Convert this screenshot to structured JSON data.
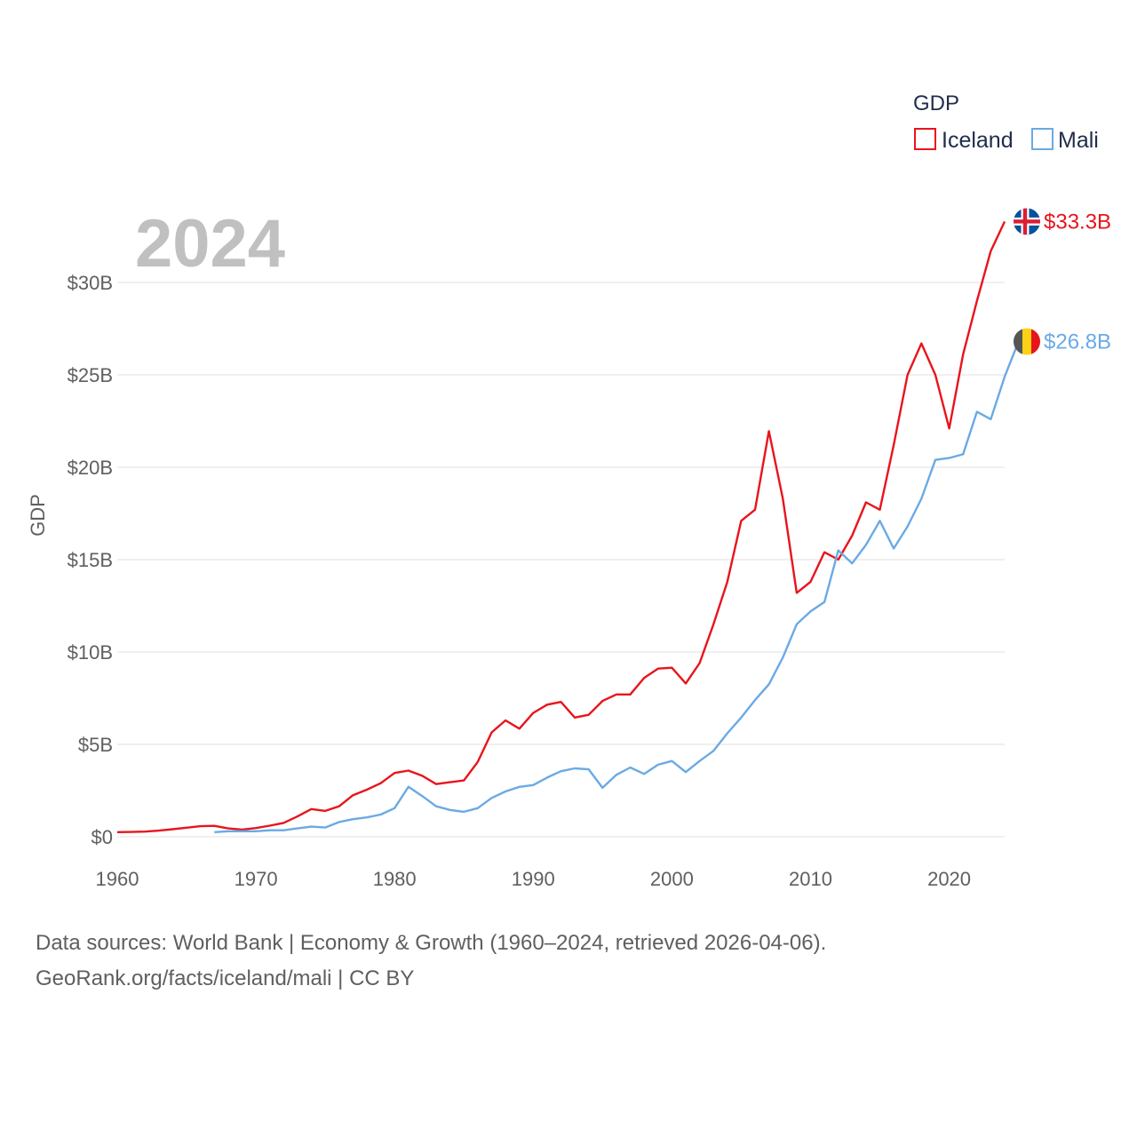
{
  "chart_data": {
    "type": "line",
    "year_overlay": "2024",
    "ylabel": "GDP",
    "xlabel": "",
    "xlim": [
      1960,
      2024
    ],
    "ylim": [
      0,
      33.3
    ],
    "y_ticks": [
      0,
      5,
      10,
      15,
      20,
      25,
      30
    ],
    "y_tick_labels": [
      "$0",
      "$5B",
      "$10B",
      "$15B",
      "$20B",
      "$25B",
      "$30B"
    ],
    "x_ticks": [
      1960,
      1970,
      1980,
      1990,
      2000,
      2010,
      2020
    ],
    "x_tick_labels": [
      "1960",
      "1970",
      "1980",
      "1990",
      "2000",
      "2010",
      "2020"
    ],
    "legend_title": "GDP",
    "legend_position": "top-right",
    "grid": true,
    "series": [
      {
        "name": "Iceland",
        "color": "#e8141c",
        "flag": "iceland-flag",
        "end_label": "$33.3B",
        "start_year": 1960,
        "values": [
          0.25,
          0.26,
          0.28,
          0.33,
          0.41,
          0.49,
          0.57,
          0.59,
          0.45,
          0.39,
          0.47,
          0.6,
          0.75,
          1.1,
          1.5,
          1.4,
          1.65,
          2.25,
          2.55,
          2.9,
          3.45,
          3.58,
          3.3,
          2.85,
          2.95,
          3.05,
          4.05,
          5.65,
          6.3,
          5.85,
          6.7,
          7.15,
          7.3,
          6.45,
          6.6,
          7.35,
          7.7,
          7.7,
          8.6,
          9.1,
          9.15,
          8.3,
          9.4,
          11.5,
          13.8,
          17.1,
          17.7,
          21.95,
          18.3,
          13.2,
          13.8,
          15.4,
          15.0,
          16.3,
          18.1,
          17.7,
          21.2,
          25.0,
          26.7,
          25.0,
          22.1,
          26.1,
          29.0,
          31.7,
          33.3
        ]
      },
      {
        "name": "Mali",
        "color": "#6aaae4",
        "flag": "mali-flag",
        "end_label": "$26.8B",
        "start_year": 1967,
        "values": [
          0.25,
          0.3,
          0.3,
          0.3,
          0.35,
          0.35,
          0.45,
          0.55,
          0.5,
          0.8,
          0.95,
          1.05,
          1.2,
          1.55,
          2.7,
          2.2,
          1.65,
          1.45,
          1.35,
          1.55,
          2.1,
          2.45,
          2.7,
          2.8,
          3.2,
          3.55,
          3.7,
          3.65,
          2.65,
          3.35,
          3.75,
          3.4,
          3.9,
          4.1,
          3.5,
          4.1,
          4.65,
          5.6,
          6.45,
          7.4,
          8.25,
          9.7,
          11.5,
          12.2,
          12.7,
          15.5,
          14.8,
          15.8,
          17.1,
          15.6,
          16.8,
          18.3,
          20.4,
          20.5,
          20.7,
          23.0,
          22.6,
          24.9,
          26.8
        ]
      }
    ]
  },
  "footer": {
    "line1": "Data sources: World Bank | Economy & Growth (1960–2024, retrieved 2026-04-06).",
    "line2": "GeoRank.org/facts/iceland/mali | CC BY"
  }
}
